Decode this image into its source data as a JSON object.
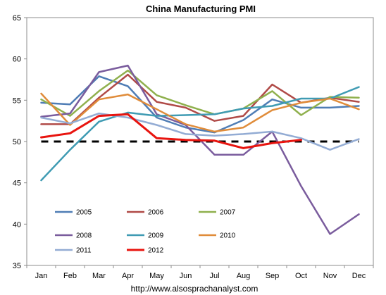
{
  "chart_data": {
    "type": "line",
    "title": "China Manufacturing PMI",
    "footer": "http://www.alsosprachanalyst.com",
    "categories": [
      "Jan",
      "Feb",
      "Mar",
      "Apr",
      "May",
      "Jun",
      "Jul",
      "Aug",
      "Sep",
      "Oct",
      "Nov",
      "Dec"
    ],
    "ylim": [
      35,
      65
    ],
    "yticks": [
      35,
      40,
      45,
      50,
      55,
      60,
      65
    ],
    "reference_line": {
      "value": 50,
      "style": "dashed",
      "color": "#000000"
    },
    "legend_position": "bottom-left",
    "grid": false,
    "series": [
      {
        "name": "2005",
        "color": "#4F7DB5",
        "values": [
          54.7,
          54.5,
          57.9,
          56.7,
          52.9,
          51.7,
          51.1,
          52.6,
          55.1,
          54.1,
          54.1,
          54.3
        ]
      },
      {
        "name": "2006",
        "color": "#B04A47",
        "values": [
          52.1,
          52.1,
          55.3,
          58.1,
          54.8,
          54.1,
          52.5,
          53.1,
          56.9,
          54.7,
          55.3,
          54.8
        ]
      },
      {
        "name": "2007",
        "color": "#8FB04D",
        "values": [
          55.1,
          53.1,
          56.1,
          58.6,
          55.6,
          54.4,
          53.3,
          54.0,
          56.1,
          53.2,
          55.4,
          55.3
        ]
      },
      {
        "name": "2008",
        "color": "#7A5C9D",
        "values": [
          53.0,
          53.4,
          58.4,
          59.2,
          53.3,
          52.0,
          48.4,
          48.4,
          51.2,
          44.6,
          38.8,
          41.2
        ]
      },
      {
        "name": "2009",
        "color": "#3F9BB3",
        "values": [
          45.3,
          49.0,
          52.4,
          53.5,
          53.1,
          53.2,
          53.3,
          54.0,
          54.3,
          55.2,
          55.2,
          56.6
        ]
      },
      {
        "name": "2010",
        "color": "#E08C3A",
        "values": [
          55.8,
          52.0,
          55.1,
          55.7,
          53.9,
          52.1,
          51.2,
          51.7,
          53.8,
          54.7,
          55.2,
          53.9
        ]
      },
      {
        "name": "2011",
        "color": "#93ACD4",
        "values": [
          52.9,
          52.2,
          53.4,
          52.9,
          52.0,
          50.9,
          50.7,
          50.9,
          51.2,
          50.4,
          49.0,
          50.3
        ]
      },
      {
        "name": "2012",
        "color": "#E8140F",
        "values": [
          50.5,
          51.0,
          53.1,
          53.3,
          50.4,
          50.2,
          50.1,
          49.2,
          49.8,
          50.2,
          null,
          null
        ]
      }
    ]
  }
}
